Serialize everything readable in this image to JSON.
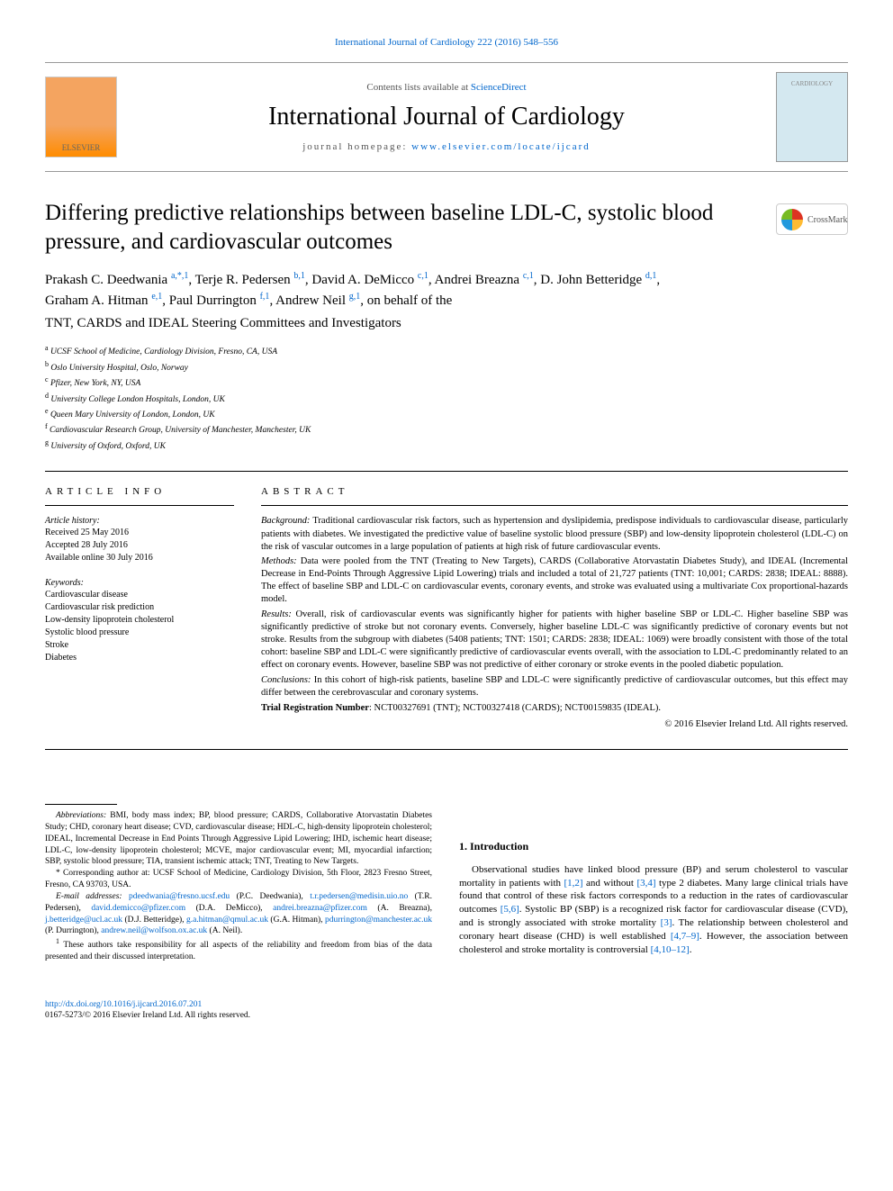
{
  "top_link": "International Journal of Cardiology 222 (2016) 548–556",
  "header": {
    "contents_prefix": "Contents lists available at ",
    "contents_link": "ScienceDirect",
    "journal_name": "International Journal of Cardiology",
    "homepage_prefix": "journal homepage: ",
    "homepage_link": "www.elsevier.com/locate/ijcard"
  },
  "title": "Differing predictive relationships between baseline LDL-C, systolic blood pressure, and cardiovascular outcomes",
  "authors_line1": "Prakash C. Deedwania ",
  "authors_sup1": "a,*,1",
  "authors_line2": ", Terje R. Pedersen ",
  "authors_sup2": "b,1",
  "authors_line3": ", David A. DeMicco ",
  "authors_sup3": "c,1",
  "authors_line4": ", Andrei Breazna ",
  "authors_sup4": "c,1",
  "authors_line5": ", D. John Betteridge ",
  "authors_sup5": "d,1",
  "authors_line6": ",",
  "authors_line7": "Graham A. Hitman ",
  "authors_sup7": "e,1",
  "authors_line8": ", Paul Durrington ",
  "authors_sup8": "f,1",
  "authors_line9": ", Andrew Neil ",
  "authors_sup9": "g,1",
  "authors_line10": ", on behalf of the",
  "behalf": "TNT, CARDS and IDEAL Steering Committees and Investigators",
  "affiliations": [
    {
      "sup": "a",
      "text": " UCSF School of Medicine, Cardiology Division, Fresno, CA, USA"
    },
    {
      "sup": "b",
      "text": " Oslo University Hospital, Oslo, Norway"
    },
    {
      "sup": "c",
      "text": " Pfizer, New York, NY, USA"
    },
    {
      "sup": "d",
      "text": " University College London Hospitals, London, UK"
    },
    {
      "sup": "e",
      "text": " Queen Mary University of London, London, UK"
    },
    {
      "sup": "f",
      "text": " Cardiovascular Research Group, University of Manchester, Manchester, UK"
    },
    {
      "sup": "g",
      "text": " University of Oxford, Oxford, UK"
    }
  ],
  "article_info": {
    "heading": "article info",
    "history_label": "Article history:",
    "history": [
      "Received 25 May 2016",
      "Accepted 28 July 2016",
      "Available online 30 July 2016"
    ],
    "keywords_label": "Keywords:",
    "keywords": [
      "Cardiovascular disease",
      "Cardiovascular risk prediction",
      "Low-density lipoprotein cholesterol",
      "Systolic blood pressure",
      "Stroke",
      "Diabetes"
    ]
  },
  "abstract": {
    "heading": "abstract",
    "background_label": "Background:",
    "background": " Traditional cardiovascular risk factors, such as hypertension and dyslipidemia, predispose individuals to cardiovascular disease, particularly patients with diabetes. We investigated the predictive value of baseline systolic blood pressure (SBP) and low-density lipoprotein cholesterol (LDL-C) on the risk of vascular outcomes in a large population of patients at high risk of future cardiovascular events.",
    "methods_label": "Methods:",
    "methods": " Data were pooled from the TNT (Treating to New Targets), CARDS (Collaborative Atorvastatin Diabetes Study), and IDEAL (Incremental Decrease in End-Points Through Aggressive Lipid Lowering) trials and included a total of 21,727 patients (TNT: 10,001; CARDS: 2838; IDEAL: 8888). The effect of baseline SBP and LDL-C on cardiovascular events, coronary events, and stroke was evaluated using a multivariate Cox proportional-hazards model.",
    "results_label": "Results:",
    "results": " Overall, risk of cardiovascular events was significantly higher for patients with higher baseline SBP or LDL-C. Higher baseline SBP was significantly predictive of stroke but not coronary events. Conversely, higher baseline LDL-C was significantly predictive of coronary events but not stroke. Results from the subgroup with diabetes (5408 patients; TNT: 1501; CARDS: 2838; IDEAL: 1069) were broadly consistent with those of the total cohort: baseline SBP and LDL-C were significantly predictive of cardiovascular events overall, with the association to LDL-C predominantly related to an effect on coronary events. However, baseline SBP was not predictive of either coronary or stroke events in the pooled diabetic population.",
    "conclusions_label": "Conclusions:",
    "conclusions": " In this cohort of high-risk patients, baseline SBP and LDL-C were significantly predictive of cardiovascular outcomes, but this effect may differ between the cerebrovascular and coronary systems.",
    "trial_label": "Trial Registration Number",
    "trial": ": NCT00327691 (TNT); NCT00327418 (CARDS); NCT00159835 (IDEAL).",
    "copyright": "© 2016 Elsevier Ireland Ltd. All rights reserved."
  },
  "notes": {
    "abbrev_label": "Abbreviations:",
    "abbrev": " BMI, body mass index; BP, blood pressure; CARDS, Collaborative Atorvastatin Diabetes Study; CHD, coronary heart disease; CVD, cardiovascular disease; HDL-C, high-density lipoprotein cholesterol; IDEAL, Incremental Decrease in End Points Through Aggressive Lipid Lowering; IHD, ischemic heart disease; LDL-C, low-density lipoprotein cholesterol; MCVE, major cardiovascular event; MI, myocardial infarction; SBP, systolic blood pressure; TIA, transient ischemic attack; TNT, Treating to New Targets.",
    "corr_symbol": "*",
    "corr": " Corresponding author at: UCSF School of Medicine, Cardiology Division, 5th Floor, 2823 Fresno Street, Fresno, CA 93703, USA.",
    "email_label": "E-mail addresses:",
    "emails": [
      {
        "email": "pdeedwania@fresno.ucsf.edu",
        "name": " (P.C. Deedwania), "
      },
      {
        "email": "t.r.pedersen@medisin.uio.no",
        "name": " (T.R. Pedersen), "
      },
      {
        "email": "david.demicco@pfizer.com",
        "name": " (D.A. DeMicco), "
      },
      {
        "email": "andrei.breazna@pfizer.com",
        "name": " (A. Breazna), "
      },
      {
        "email": "j.betteridge@ucl.ac.uk",
        "name": " (D.J. Betteridge), "
      },
      {
        "email": "g.a.hitman@qmul.ac.uk",
        "name": " (G.A. Hitman), "
      },
      {
        "email": "pdurrington@manchester.ac.uk",
        "name": " (P. Durrington), "
      },
      {
        "email": "andrew.neil@wolfson.ox.ac.uk",
        "name": " (A. Neil)."
      }
    ],
    "sup1_symbol": "1",
    "sup1": " These authors take responsibility for all aspects of the reliability and freedom from bias of the data presented and their discussed interpretation."
  },
  "introduction": {
    "heading": "1. Introduction",
    "p1_a": "Observational studies have linked blood pressure (BP) and serum cholesterol to vascular mortality in patients with ",
    "p1_link1": "[1,2]",
    "p1_b": " and without ",
    "p1_link2": "[3,4]",
    "p1_c": " type 2 diabetes. Many large clinical trials have found that control of these risk factors corresponds to a reduction in the rates of cardiovascular outcomes ",
    "p1_link3": "[5,6]",
    "p1_d": ". Systolic BP (SBP) is a recognized risk factor for cardiovascular disease (CVD), and is strongly associated with stroke mortality ",
    "p1_link4": "[3]",
    "p1_e": ". The relationship between cholesterol and coronary heart disease (CHD) is well established ",
    "p1_link5": "[4,7–9]",
    "p1_f": ". However, the association between cholesterol and stroke mortality is controversial ",
    "p1_link6": "[4,10–12]",
    "p1_g": "."
  },
  "footer": {
    "doi": "http://dx.doi.org/10.1016/j.ijcard.2016.07.201",
    "issn": "0167-5273/© 2016 Elsevier Ireland Ltd. All rights reserved."
  }
}
